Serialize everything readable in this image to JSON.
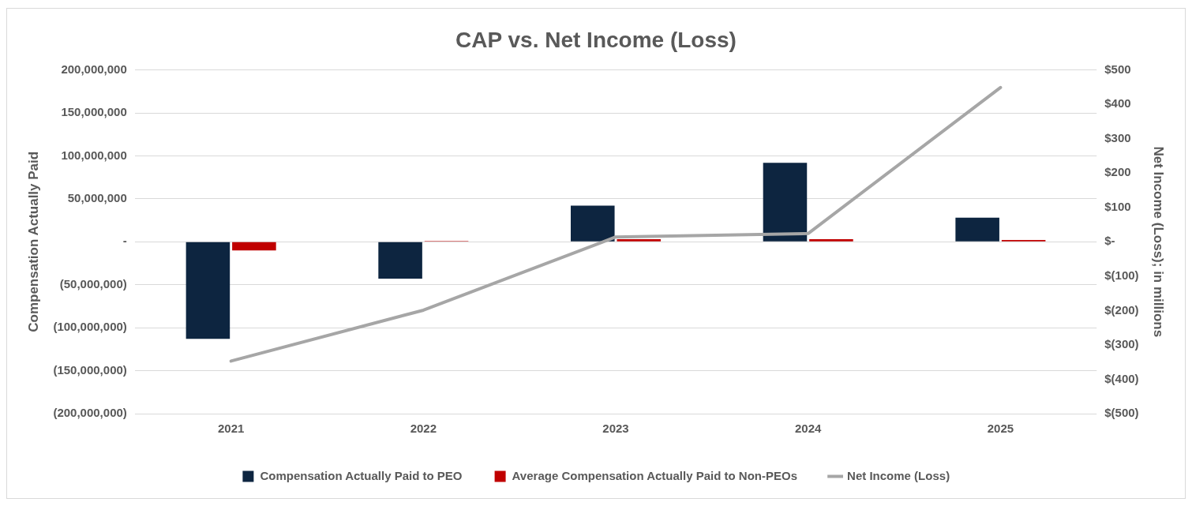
{
  "chart_data": {
    "type": "bar",
    "title": "CAP vs. Net Income (Loss)",
    "ylabel": "Compensation Actually Paid",
    "y2label": "Net Income (Loss); in millions",
    "categories": [
      "2021",
      "2022",
      "2023",
      "2024",
      "2025"
    ],
    "series": [
      {
        "name": "Compensation Actually Paid to PEO",
        "color": "#0d2540",
        "values": [
          -113000000,
          -43000000,
          42000000,
          92000000,
          28000000
        ]
      },
      {
        "name": "Average Compensation Actually Paid to Non-PEOs",
        "color": "#c00000",
        "values": [
          -10000000,
          1000000,
          3000000,
          3000000,
          2000000
        ]
      },
      {
        "name": "Net Income (Loss)",
        "type": "line",
        "axis": "y2",
        "color": "#a6a6a6",
        "values": [
          -347,
          -199,
          14,
          24,
          449
        ]
      }
    ],
    "ylim": [
      -200000000,
      200000000
    ],
    "yticks": [
      {
        "value": -200000000,
        "label": "(200,000,000)"
      },
      {
        "value": -150000000,
        "label": "(150,000,000)"
      },
      {
        "value": -100000000,
        "label": "(100,000,000)"
      },
      {
        "value": -50000000,
        "label": "(50,000,000)"
      },
      {
        "value": 0,
        "label": "-"
      },
      {
        "value": 50000000,
        "label": "50,000,000"
      },
      {
        "value": 100000000,
        "label": "100,000,000"
      },
      {
        "value": 150000000,
        "label": "150,000,000"
      },
      {
        "value": 200000000,
        "label": "200,000,000"
      }
    ],
    "y2lim": [
      -500,
      500
    ],
    "y2ticks": [
      {
        "value": -500,
        "label": "$(500)"
      },
      {
        "value": -400,
        "label": "$(400)"
      },
      {
        "value": -300,
        "label": "$(300)"
      },
      {
        "value": -200,
        "label": "$(200)"
      },
      {
        "value": -100,
        "label": "$(100)"
      },
      {
        "value": 0,
        "label": "$-"
      },
      {
        "value": 100,
        "label": "$100"
      },
      {
        "value": 200,
        "label": "$200"
      },
      {
        "value": 300,
        "label": "$300"
      },
      {
        "value": 400,
        "label": "$400"
      },
      {
        "value": 500,
        "label": "$500"
      }
    ],
    "grid": "y",
    "legend": "bottom",
    "marker": "none",
    "line_style": "solid"
  }
}
